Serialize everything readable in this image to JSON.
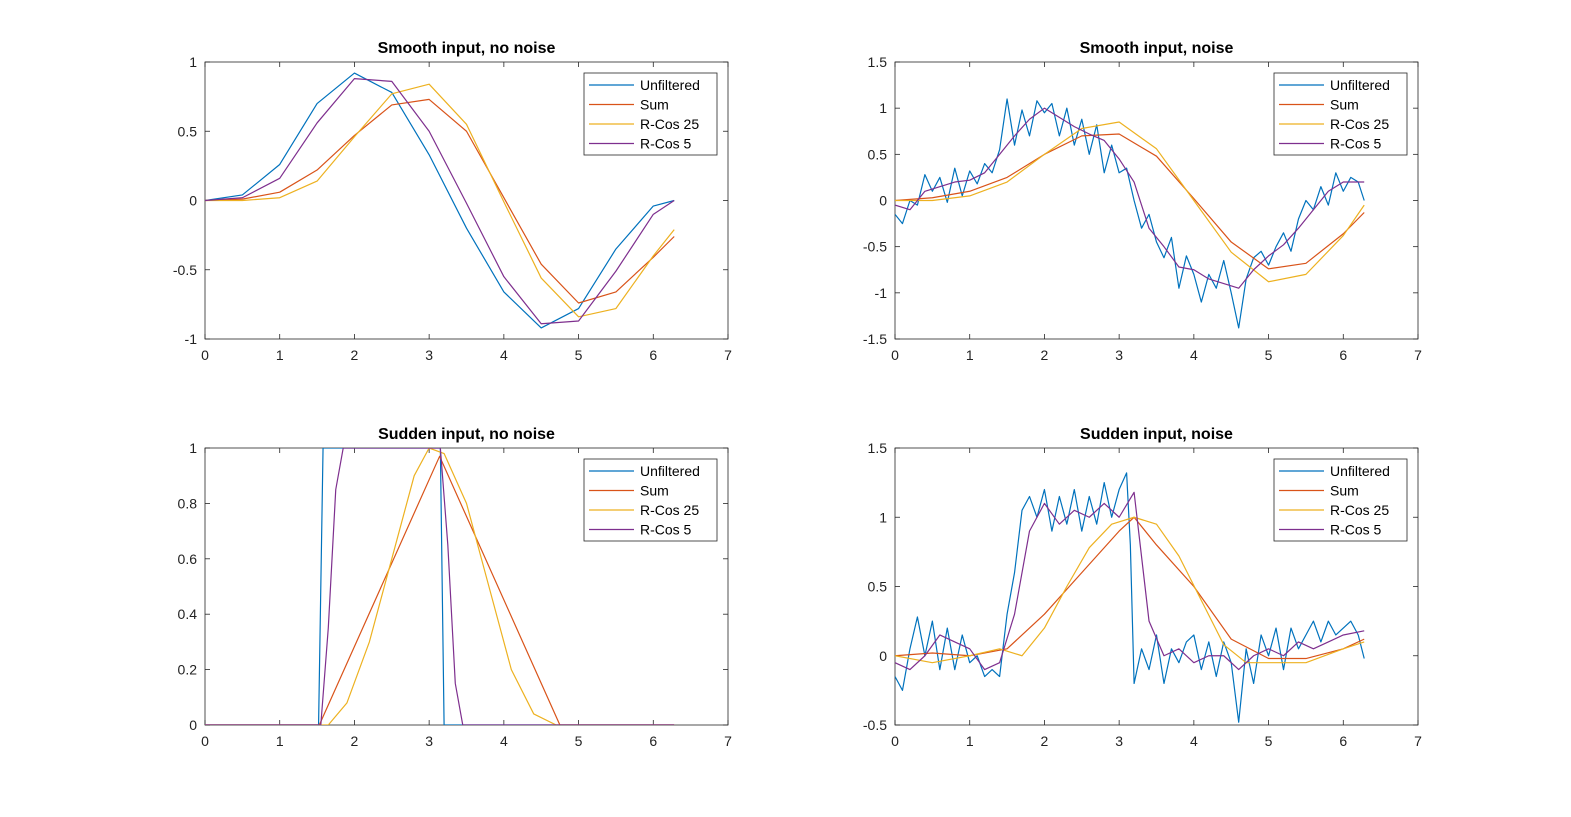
{
  "figure": {
    "colors": {
      "Unfiltered": "#0072BD",
      "Sum": "#D95319",
      "R-Cos 25": "#EDB120",
      "R-Cos 5": "#7E2F8E",
      "axis": "#262626"
    }
  },
  "chart_data": [
    {
      "type": "line",
      "title": "Smooth input, no noise",
      "xlabel": "",
      "ylabel": "",
      "xlim": [
        0,
        7
      ],
      "ylim": [
        -1,
        1
      ],
      "xticks": [
        "0",
        "1",
        "2",
        "3",
        "4",
        "5",
        "6",
        "7"
      ],
      "yticks": [
        "-1",
        "-0.5",
        "0",
        "0.5",
        "1"
      ],
      "legend_position": "top-right",
      "series": [
        {
          "name": "Unfiltered",
          "x": [
            0,
            0.5,
            1,
            1.5,
            2,
            2.5,
            3,
            3.5,
            4,
            4.5,
            5,
            5.5,
            6,
            6.28
          ],
          "y": [
            0,
            0.04,
            0.26,
            0.7,
            0.92,
            0.78,
            0.33,
            -0.2,
            -0.66,
            -0.92,
            -0.78,
            -0.35,
            -0.04,
            0
          ]
        },
        {
          "name": "Sum",
          "x": [
            0,
            0.5,
            1,
            1.5,
            2,
            2.5,
            3,
            3.5,
            4,
            4.5,
            5,
            5.5,
            6,
            6.28
          ],
          "y": [
            0,
            0.01,
            0.06,
            0.22,
            0.47,
            0.69,
            0.73,
            0.5,
            0.02,
            -0.46,
            -0.74,
            -0.66,
            -0.41,
            -0.26
          ]
        },
        {
          "name": "R-Cos 25",
          "x": [
            0,
            0.5,
            1,
            1.5,
            2,
            2.5,
            3,
            3.5,
            4,
            4.5,
            5,
            5.5,
            6,
            6.28
          ],
          "y": [
            0,
            0,
            0.02,
            0.14,
            0.46,
            0.77,
            0.84,
            0.55,
            -0.01,
            -0.56,
            -0.84,
            -0.78,
            -0.4,
            -0.21
          ]
        },
        {
          "name": "R-Cos 5",
          "x": [
            0,
            0.5,
            1,
            1.5,
            2,
            2.5,
            3,
            3.5,
            4,
            4.5,
            5,
            5.5,
            6,
            6.28
          ],
          "y": [
            0,
            0.02,
            0.16,
            0.56,
            0.88,
            0.86,
            0.5,
            -0.02,
            -0.55,
            -0.89,
            -0.87,
            -0.51,
            -0.1,
            0
          ]
        }
      ]
    },
    {
      "type": "line",
      "title": "Smooth input, noise",
      "xlabel": "",
      "ylabel": "",
      "xlim": [
        0,
        7
      ],
      "ylim": [
        -1.5,
        1.5
      ],
      "xticks": [
        "0",
        "1",
        "2",
        "3",
        "4",
        "5",
        "6",
        "7"
      ],
      "yticks": [
        "-1.5",
        "-1",
        "-0.5",
        "0",
        "0.5",
        "1",
        "1.5"
      ],
      "legend_position": "top-right",
      "series": [
        {
          "name": "Unfiltered",
          "x": [
            0,
            0.1,
            0.2,
            0.3,
            0.4,
            0.5,
            0.6,
            0.7,
            0.8,
            0.9,
            1,
            1.1,
            1.2,
            1.3,
            1.4,
            1.5,
            1.6,
            1.7,
            1.8,
            1.9,
            2,
            2.1,
            2.2,
            2.3,
            2.4,
            2.5,
            2.6,
            2.7,
            2.8,
            2.9,
            3,
            3.1,
            3.2,
            3.3,
            3.4,
            3.5,
            3.6,
            3.7,
            3.8,
            3.9,
            4,
            4.1,
            4.2,
            4.3,
            4.4,
            4.5,
            4.6,
            4.7,
            4.8,
            4.9,
            5,
            5.1,
            5.2,
            5.3,
            5.4,
            5.5,
            5.6,
            5.7,
            5.8,
            5.9,
            6,
            6.1,
            6.2,
            6.28
          ],
          "y": [
            -0.15,
            -0.25,
            0,
            -0.05,
            0.28,
            0.1,
            0.25,
            -0.02,
            0.35,
            0.05,
            0.32,
            0.18,
            0.4,
            0.3,
            0.55,
            1.1,
            0.6,
            0.98,
            0.7,
            1.08,
            0.95,
            1.05,
            0.7,
            1.0,
            0.6,
            0.88,
            0.5,
            0.82,
            0.3,
            0.6,
            0.3,
            0.35,
            0.0,
            -0.3,
            -0.15,
            -0.45,
            -0.62,
            -0.4,
            -0.95,
            -0.6,
            -0.8,
            -1.1,
            -0.8,
            -0.95,
            -0.65,
            -1.0,
            -1.38,
            -0.85,
            -0.62,
            -0.55,
            -0.7,
            -0.5,
            -0.35,
            -0.55,
            -0.2,
            0.0,
            -0.1,
            0.15,
            -0.05,
            0.3,
            0.1,
            0.25,
            0.2,
            0.0
          ]
        },
        {
          "name": "Sum",
          "x": [
            0,
            0.5,
            1,
            1.5,
            2,
            2.5,
            3,
            3.5,
            4,
            4.5,
            5,
            5.5,
            6,
            6.28
          ],
          "y": [
            0,
            0.03,
            0.1,
            0.25,
            0.5,
            0.7,
            0.72,
            0.48,
            0.02,
            -0.45,
            -0.74,
            -0.68,
            -0.36,
            -0.13
          ]
        },
        {
          "name": "R-Cos 25",
          "x": [
            0,
            0.5,
            1,
            1.5,
            2,
            2.5,
            3,
            3.5,
            4,
            4.5,
            5,
            5.5,
            6,
            6.28
          ],
          "y": [
            0,
            0,
            0.05,
            0.2,
            0.5,
            0.78,
            0.85,
            0.56,
            0.0,
            -0.56,
            -0.88,
            -0.8,
            -0.38,
            -0.05
          ]
        },
        {
          "name": "R-Cos 5",
          "x": [
            0,
            0.2,
            0.4,
            0.6,
            0.8,
            1,
            1.2,
            1.4,
            1.6,
            1.8,
            2,
            2.2,
            2.4,
            2.6,
            2.8,
            3,
            3.2,
            3.4,
            3.6,
            3.8,
            4,
            4.2,
            4.4,
            4.6,
            4.8,
            5,
            5.2,
            5.4,
            5.6,
            5.8,
            6,
            6.28
          ],
          "y": [
            -0.05,
            -0.1,
            0.1,
            0.15,
            0.2,
            0.22,
            0.3,
            0.5,
            0.7,
            0.88,
            1.0,
            0.9,
            0.8,
            0.72,
            0.65,
            0.45,
            0.2,
            -0.3,
            -0.5,
            -0.72,
            -0.75,
            -0.85,
            -0.9,
            -0.95,
            -0.75,
            -0.6,
            -0.48,
            -0.3,
            -0.1,
            0.1,
            0.2,
            0.2
          ]
        }
      ]
    },
    {
      "type": "line",
      "title": "Sudden input, no noise",
      "xlabel": "",
      "ylabel": "",
      "xlim": [
        0,
        7
      ],
      "ylim": [
        0,
        1
      ],
      "xticks": [
        "0",
        "1",
        "2",
        "3",
        "4",
        "5",
        "6",
        "7"
      ],
      "yticks": [
        "0",
        "0.2",
        "0.4",
        "0.6",
        "0.8",
        "1"
      ],
      "legend_position": "top-right",
      "series": [
        {
          "name": "Unfiltered",
          "x": [
            0,
            1.52,
            1.58,
            3.15,
            3.2,
            6.28
          ],
          "y": [
            0,
            0,
            1,
            1,
            0,
            0
          ]
        },
        {
          "name": "Sum",
          "x": [
            0,
            1.53,
            3.14,
            4.75,
            6.28
          ],
          "y": [
            0,
            0,
            0.97,
            0,
            0
          ]
        },
        {
          "name": "R-Cos 25",
          "x": [
            0,
            1.65,
            1.9,
            2.2,
            2.5,
            2.8,
            3.0,
            3.2,
            3.5,
            3.8,
            4.1,
            4.4,
            4.7,
            6.28
          ],
          "y": [
            0,
            0,
            0.08,
            0.3,
            0.6,
            0.9,
            1.0,
            0.98,
            0.8,
            0.5,
            0.2,
            0.04,
            0,
            0
          ]
        },
        {
          "name": "R-Cos 5",
          "x": [
            0,
            1.55,
            1.65,
            1.75,
            1.85,
            3.15,
            3.25,
            3.35,
            3.45,
            6.28
          ],
          "y": [
            0,
            0,
            0.35,
            0.85,
            1,
            1,
            0.65,
            0.15,
            0,
            0
          ]
        }
      ]
    },
    {
      "type": "line",
      "title": "Sudden input, noise",
      "xlabel": "",
      "ylabel": "",
      "xlim": [
        0,
        7
      ],
      "ylim": [
        -0.5,
        1.5
      ],
      "xticks": [
        "0",
        "1",
        "2",
        "3",
        "4",
        "5",
        "6",
        "7"
      ],
      "yticks": [
        "-0.5",
        "0",
        "0.5",
        "1",
        "1.5"
      ],
      "legend_position": "top-right",
      "series": [
        {
          "name": "Unfiltered",
          "x": [
            0,
            0.1,
            0.2,
            0.3,
            0.4,
            0.5,
            0.6,
            0.7,
            0.8,
            0.9,
            1,
            1.1,
            1.2,
            1.3,
            1.4,
            1.5,
            1.6,
            1.7,
            1.8,
            1.9,
            2,
            2.1,
            2.2,
            2.3,
            2.4,
            2.5,
            2.6,
            2.7,
            2.8,
            2.9,
            3,
            3.1,
            3.15,
            3.2,
            3.3,
            3.4,
            3.5,
            3.6,
            3.7,
            3.8,
            3.9,
            4,
            4.1,
            4.2,
            4.3,
            4.4,
            4.5,
            4.6,
            4.7,
            4.8,
            4.9,
            5,
            5.1,
            5.2,
            5.3,
            5.4,
            5.5,
            5.6,
            5.7,
            5.8,
            5.9,
            6,
            6.1,
            6.2,
            6.28
          ],
          "y": [
            -0.15,
            -0.25,
            0.05,
            0.28,
            0.0,
            0.25,
            -0.1,
            0.2,
            -0.1,
            0.15,
            -0.05,
            0.0,
            -0.15,
            -0.1,
            -0.15,
            0.3,
            0.6,
            1.05,
            1.15,
            1.0,
            1.2,
            0.9,
            1.15,
            0.95,
            1.2,
            0.9,
            1.15,
            0.95,
            1.25,
            1.0,
            1.2,
            1.32,
            0.8,
            -0.2,
            0.05,
            -0.1,
            0.15,
            -0.2,
            0.05,
            -0.05,
            0.1,
            0.15,
            -0.1,
            0.1,
            -0.15,
            0.1,
            -0.05,
            -0.48,
            0.05,
            -0.2,
            0.15,
            0.0,
            0.2,
            -0.1,
            0.2,
            0.05,
            0.15,
            0.25,
            0.1,
            0.25,
            0.15,
            0.2,
            0.25,
            0.15,
            -0.02
          ]
        },
        {
          "name": "Sum",
          "x": [
            0,
            0.5,
            1,
            1.5,
            2,
            2.5,
            3,
            3.2,
            3.5,
            4,
            4.5,
            5,
            5.5,
            6,
            6.28
          ],
          "y": [
            0,
            0.02,
            0.0,
            0.05,
            0.3,
            0.6,
            0.9,
            1.0,
            0.8,
            0.5,
            0.12,
            -0.02,
            -0.02,
            0.05,
            0.12
          ]
        },
        {
          "name": "R-Cos 25",
          "x": [
            0,
            0.5,
            1,
            1.4,
            1.7,
            2,
            2.3,
            2.6,
            2.9,
            3.2,
            3.5,
            3.8,
            4.1,
            4.4,
            4.7,
            5,
            5.5,
            6,
            6.28
          ],
          "y": [
            0,
            -0.05,
            0.0,
            0.05,
            0.0,
            0.2,
            0.5,
            0.78,
            0.95,
            1.0,
            0.95,
            0.72,
            0.4,
            0.08,
            -0.05,
            -0.05,
            -0.05,
            0.05,
            0.1
          ]
        },
        {
          "name": "R-Cos 5",
          "x": [
            0,
            0.2,
            0.4,
            0.6,
            0.8,
            1,
            1.2,
            1.4,
            1.6,
            1.8,
            2,
            2.2,
            2.4,
            2.6,
            2.8,
            3,
            3.2,
            3.4,
            3.6,
            3.8,
            4,
            4.2,
            4.4,
            4.6,
            4.8,
            5,
            5.2,
            5.4,
            5.6,
            5.8,
            6,
            6.28
          ],
          "y": [
            -0.05,
            -0.1,
            0.0,
            0.15,
            0.1,
            0.05,
            -0.1,
            -0.05,
            0.3,
            0.9,
            1.1,
            0.95,
            1.05,
            1.0,
            1.1,
            1.0,
            1.18,
            0.25,
            0.0,
            0.05,
            -0.05,
            0.0,
            0.0,
            -0.1,
            0.0,
            0.05,
            0.0,
            0.1,
            0.05,
            0.1,
            0.15,
            0.18
          ]
        }
      ]
    }
  ]
}
